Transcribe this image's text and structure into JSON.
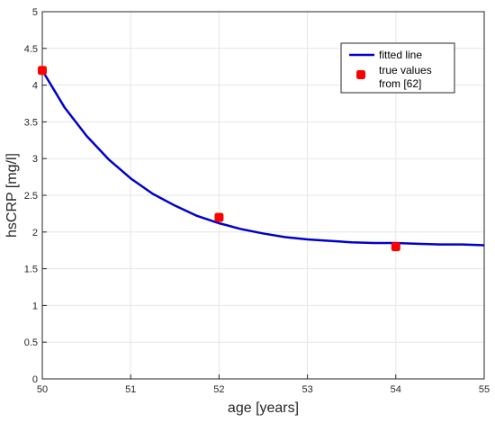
{
  "chart_data": {
    "type": "line",
    "xlabel": "age [years]",
    "ylabel": "hsCRP [mg/l]",
    "xlim": [
      50,
      55
    ],
    "ylim": [
      0,
      5
    ],
    "xticks": [
      "50",
      "51",
      "52",
      "53",
      "54",
      "55"
    ],
    "yticks": [
      "0",
      "0.5",
      "1",
      "1.5",
      "2",
      "2.5",
      "3",
      "3.5",
      "4",
      "4.5",
      "5"
    ],
    "grid": true,
    "legend_position": "top-right",
    "series": [
      {
        "name": "fitted line",
        "kind": "line",
        "color": "#0000cc",
        "x": [
          50,
          50.25,
          50.5,
          50.75,
          51,
          51.25,
          51.5,
          51.75,
          52,
          52.25,
          52.5,
          52.75,
          53,
          53.25,
          53.5,
          53.75,
          54,
          54.25,
          54.5,
          54.75,
          55
        ],
        "y": [
          4.2,
          3.7,
          3.31,
          2.99,
          2.73,
          2.52,
          2.36,
          2.22,
          2.12,
          2.04,
          1.98,
          1.93,
          1.9,
          1.88,
          1.86,
          1.85,
          1.85,
          1.84,
          1.83,
          1.83,
          1.82
        ]
      },
      {
        "name_lines": [
          "true values",
          "from [62]"
        ],
        "kind": "scatter",
        "color": "#ff0000",
        "x": [
          50,
          52,
          54
        ],
        "y": [
          4.2,
          2.2,
          1.8
        ]
      }
    ]
  }
}
